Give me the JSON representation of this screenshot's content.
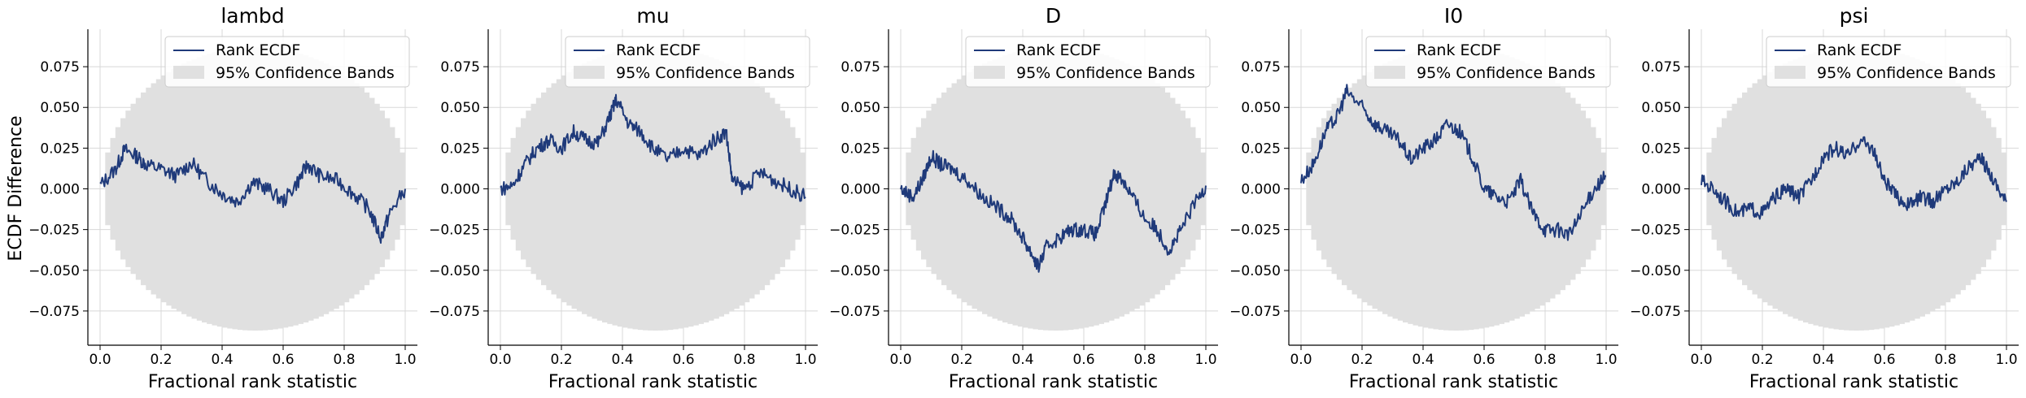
{
  "figure": {
    "ylabel": "ECDF Difference",
    "legend": {
      "line_label": "Rank ECDF",
      "band_label": "95% Confidence Bands",
      "placement": "top-right"
    },
    "colors": {
      "line": "#1f3a7a",
      "band": "#e0e0e0",
      "grid": "#d8d8d8",
      "axis": "#000000"
    }
  },
  "chart_data": [
    {
      "type": "line",
      "title": "lambd",
      "xlabel": "Fractional rank statistic",
      "xlim": [
        -0.04,
        1.04
      ],
      "ylim": [
        -0.096,
        0.098
      ],
      "xticks": [
        "0.0",
        "0.2",
        "0.4",
        "0.6",
        "0.8",
        "1.0"
      ],
      "yticks": [
        "−0.075",
        "−0.050",
        "−0.025",
        "0.000",
        "0.025",
        "0.050",
        "0.075"
      ],
      "grid": true,
      "band_halfwidth_max": 0.087,
      "series": [
        {
          "name": "Rank ECDF",
          "x": [
            0.0,
            0.05,
            0.08,
            0.12,
            0.15,
            0.2,
            0.25,
            0.3,
            0.35,
            0.4,
            0.45,
            0.5,
            0.55,
            0.6,
            0.65,
            0.68,
            0.72,
            0.78,
            0.83,
            0.88,
            0.92,
            0.95,
            1.0
          ],
          "y": [
            0.002,
            0.012,
            0.024,
            0.02,
            0.015,
            0.012,
            0.008,
            0.016,
            0.005,
            -0.003,
            -0.008,
            0.004,
            0.0,
            -0.008,
            0.005,
            0.015,
            0.008,
            0.005,
            -0.003,
            -0.012,
            -0.03,
            -0.015,
            0.0
          ]
        }
      ]
    },
    {
      "type": "line",
      "title": "mu",
      "xlabel": "Fractional rank statistic",
      "xlim": [
        -0.04,
        1.04
      ],
      "ylim": [
        -0.096,
        0.098
      ],
      "xticks": [
        "0.0",
        "0.2",
        "0.4",
        "0.6",
        "0.8",
        "1.0"
      ],
      "yticks": [
        "−0.075",
        "−0.050",
        "−0.025",
        "0.000",
        "0.025",
        "0.050",
        "0.075"
      ],
      "grid": true,
      "band_halfwidth_max": 0.087,
      "series": [
        {
          "name": "Rank ECDF",
          "x": [
            0.0,
            0.04,
            0.08,
            0.12,
            0.16,
            0.2,
            0.24,
            0.28,
            0.32,
            0.36,
            0.38,
            0.42,
            0.46,
            0.5,
            0.55,
            0.6,
            0.65,
            0.7,
            0.74,
            0.76,
            0.8,
            0.85,
            0.9,
            0.95,
            1.0
          ],
          "y": [
            0.0,
            0.002,
            0.015,
            0.025,
            0.03,
            0.025,
            0.035,
            0.03,
            0.028,
            0.045,
            0.055,
            0.04,
            0.035,
            0.025,
            0.018,
            0.025,
            0.02,
            0.03,
            0.035,
            0.005,
            0.0,
            0.01,
            0.005,
            0.0,
            -0.005
          ]
        }
      ]
    },
    {
      "type": "line",
      "title": "D",
      "xlabel": "Fractional rank statistic",
      "xlim": [
        -0.04,
        1.04
      ],
      "ylim": [
        -0.096,
        0.098
      ],
      "xticks": [
        "0.0",
        "0.2",
        "0.4",
        "0.6",
        "0.8",
        "1.0"
      ],
      "yticks": [
        "−0.075",
        "−0.050",
        "−0.025",
        "0.000",
        "0.025",
        "0.050",
        "0.075"
      ],
      "grid": true,
      "band_halfwidth_max": 0.087,
      "series": [
        {
          "name": "Rank ECDF",
          "x": [
            0.0,
            0.04,
            0.07,
            0.1,
            0.13,
            0.17,
            0.22,
            0.27,
            0.32,
            0.36,
            0.4,
            0.43,
            0.45,
            0.48,
            0.52,
            0.56,
            0.6,
            0.64,
            0.67,
            0.7,
            0.73,
            0.76,
            0.8,
            0.84,
            0.88,
            0.92,
            0.96,
            1.0
          ],
          "y": [
            0.0,
            -0.005,
            0.005,
            0.02,
            0.015,
            0.012,
            0.005,
            -0.005,
            -0.012,
            -0.018,
            -0.03,
            -0.04,
            -0.048,
            -0.035,
            -0.03,
            -0.025,
            -0.025,
            -0.028,
            -0.01,
            0.01,
            0.005,
            -0.005,
            -0.018,
            -0.025,
            -0.038,
            -0.025,
            -0.01,
            0.002
          ]
        }
      ]
    },
    {
      "type": "line",
      "title": "I0",
      "xlabel": "Fractional rank statistic",
      "xlim": [
        -0.04,
        1.04
      ],
      "ylim": [
        -0.096,
        0.098
      ],
      "xticks": [
        "0.0",
        "0.2",
        "0.4",
        "0.6",
        "0.8",
        "1.0"
      ],
      "yticks": [
        "−0.075",
        "−0.050",
        "−0.025",
        "0.000",
        "0.025",
        "0.050",
        "0.075"
      ],
      "grid": true,
      "band_halfwidth_max": 0.087,
      "series": [
        {
          "name": "Rank ECDF",
          "x": [
            0.0,
            0.04,
            0.08,
            0.12,
            0.15,
            0.2,
            0.24,
            0.28,
            0.32,
            0.36,
            0.4,
            0.44,
            0.48,
            0.52,
            0.56,
            0.6,
            0.64,
            0.68,
            0.72,
            0.76,
            0.8,
            0.84,
            0.88,
            0.92,
            0.96,
            1.0
          ],
          "y": [
            0.005,
            0.015,
            0.035,
            0.045,
            0.06,
            0.05,
            0.04,
            0.035,
            0.03,
            0.018,
            0.025,
            0.03,
            0.04,
            0.035,
            0.02,
            0.0,
            -0.005,
            -0.008,
            0.005,
            -0.015,
            -0.025,
            -0.025,
            -0.028,
            -0.015,
            0.0,
            0.008
          ]
        }
      ]
    },
    {
      "type": "line",
      "title": "psi",
      "xlabel": "Fractional rank statistic",
      "xlim": [
        -0.04,
        1.04
      ],
      "ylim": [
        -0.096,
        0.098
      ],
      "xticks": [
        "0.0",
        "0.2",
        "0.4",
        "0.6",
        "0.8",
        "1.0"
      ],
      "yticks": [
        "−0.075",
        "−0.050",
        "−0.025",
        "0.000",
        "0.025",
        "0.050",
        "0.075"
      ],
      "grid": true,
      "band_halfwidth_max": 0.087,
      "series": [
        {
          "name": "Rank ECDF",
          "x": [
            0.0,
            0.04,
            0.08,
            0.12,
            0.16,
            0.2,
            0.24,
            0.28,
            0.32,
            0.36,
            0.4,
            0.44,
            0.48,
            0.52,
            0.56,
            0.6,
            0.64,
            0.68,
            0.72,
            0.76,
            0.8,
            0.84,
            0.88,
            0.92,
            0.96,
            1.0
          ],
          "y": [
            0.005,
            0.0,
            -0.008,
            -0.015,
            -0.012,
            -0.015,
            -0.005,
            0.0,
            -0.005,
            0.005,
            0.02,
            0.025,
            0.02,
            0.03,
            0.025,
            0.005,
            -0.005,
            -0.01,
            -0.005,
            -0.008,
            0.0,
            0.005,
            0.015,
            0.018,
            0.005,
            -0.008
          ]
        }
      ]
    }
  ]
}
